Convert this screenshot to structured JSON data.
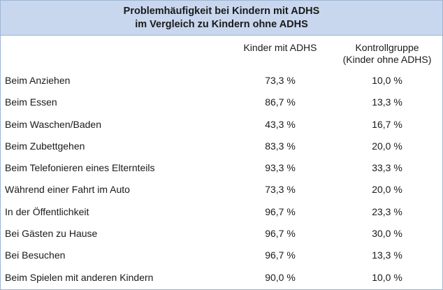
{
  "table": {
    "title_line1": "Problemhäufigkeit bei Kindern mit ADHS",
    "title_line2": "im Vergleich zu Kindern ohne ADHS",
    "col1_header": "Kinder mit ADHS",
    "col2_header_line1": "Kontrollgruppe",
    "col2_header_line2": "(Kinder ohne ADHS)",
    "rows": [
      {
        "label": "Beim Anziehen",
        "adhs": "73,3 %",
        "kontroll": "10,0 %"
      },
      {
        "label": "Beim Essen",
        "adhs": "86,7 %",
        "kontroll": "13,3 %"
      },
      {
        "label": "Beim Waschen/Baden",
        "adhs": "43,3 %",
        "kontroll": "16,7 %"
      },
      {
        "label": "Beim Zubettgehen",
        "adhs": "83,3 %",
        "kontroll": "20,0 %"
      },
      {
        "label": "Beim Telefonieren eines Elternteils",
        "adhs": "93,3 %",
        "kontroll": "33,3 %"
      },
      {
        "label": "Während einer Fahrt im Auto",
        "adhs": "73,3 %",
        "kontroll": "20,0 %"
      },
      {
        "label": "In der Öffentlichkeit",
        "adhs": "96,7 %",
        "kontroll": "23,3 %"
      },
      {
        "label": "Bei Gästen zu Hause",
        "adhs": "96,7 %",
        "kontroll": "30,0 %"
      },
      {
        "label": "Bei Besuchen",
        "adhs": "96,7 %",
        "kontroll": "13,3 %"
      },
      {
        "label": "Beim Spielen mit anderen Kindern",
        "adhs": "90,0 %",
        "kontroll": "10,0 %"
      }
    ]
  }
}
